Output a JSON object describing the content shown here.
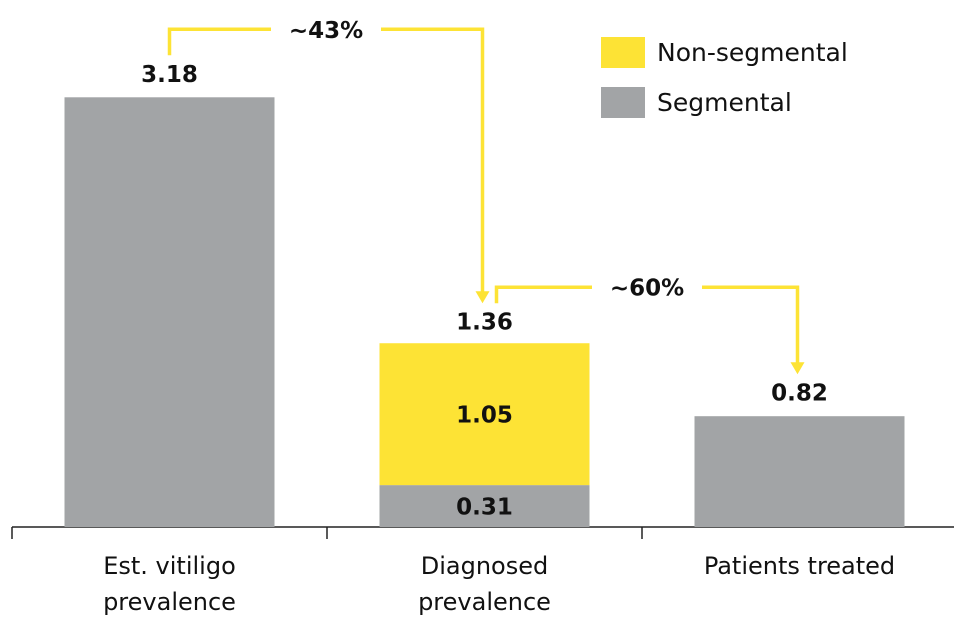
{
  "chart_data": {
    "type": "stacked_bar",
    "categories": [
      "Est. vitiligo prevalence",
      "Diagnosed prevalence",
      "Patients treated"
    ],
    "series": [
      {
        "name": "Segmental",
        "color": "#a2a4a6",
        "values": [
          3.18,
          0.31,
          0.82
        ]
      },
      {
        "name": "Non-segmental",
        "color": "#fde335",
        "values": [
          null,
          1.05,
          null
        ]
      }
    ],
    "totals": [
      null,
      1.36,
      null
    ],
    "annotations": [
      "~43%",
      "~60%"
    ],
    "annotation_color": "#fde335",
    "ylim": [
      0,
      3.9
    ]
  }
}
